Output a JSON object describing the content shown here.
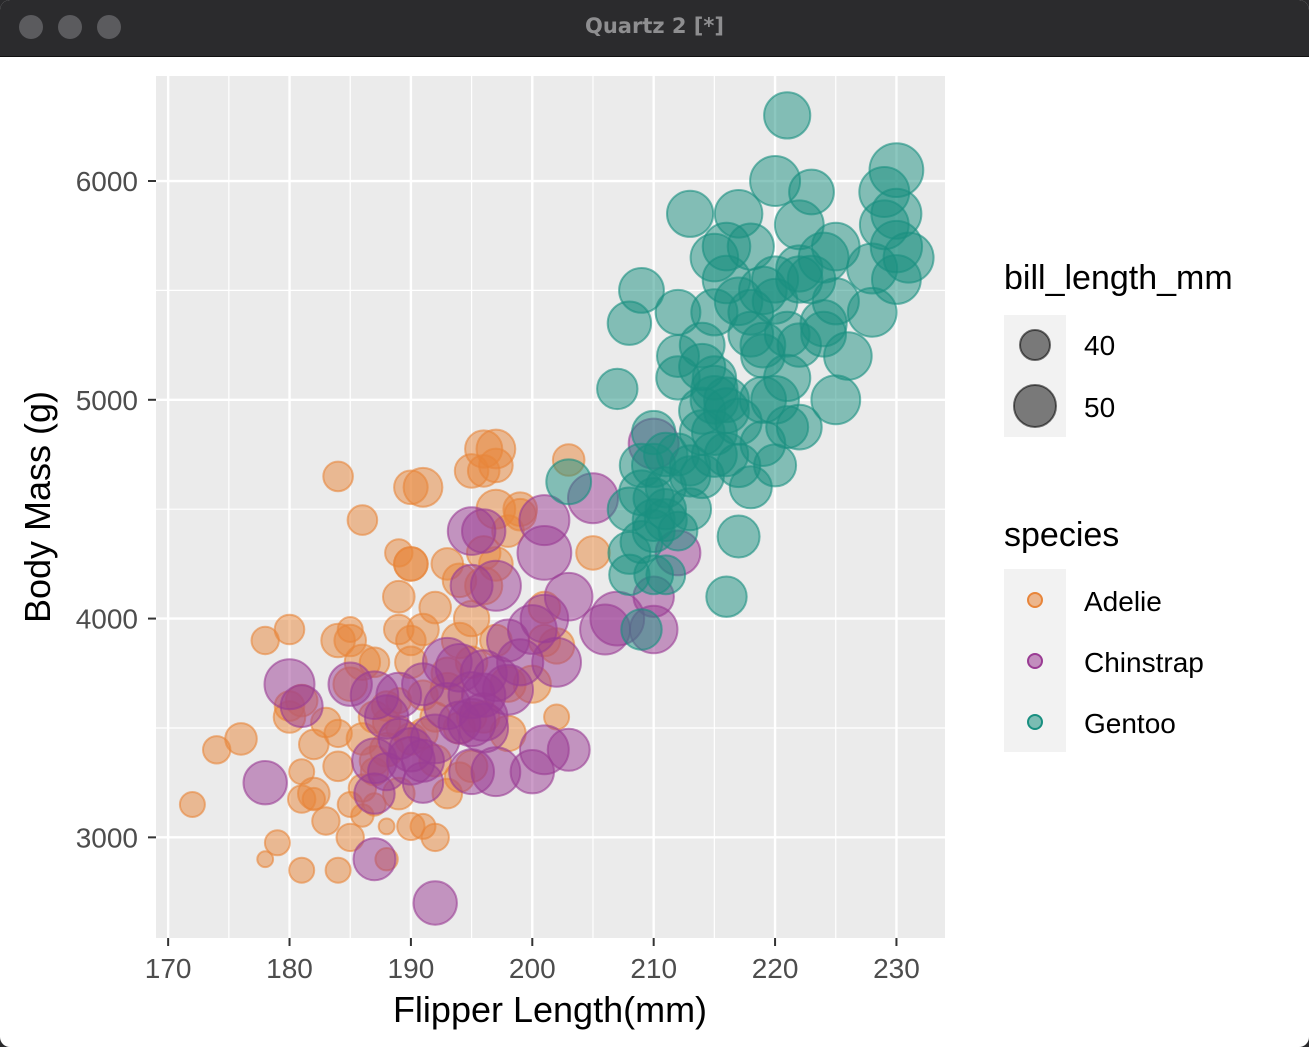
{
  "window": {
    "title": "Quartz 2 [*]"
  },
  "chart_data": {
    "type": "scatter",
    "xlabel": "Flipper Length(mm)",
    "ylabel": "Body Mass (g)",
    "xlim": [
      169,
      234
    ],
    "ylim": [
      2540,
      6480
    ],
    "xticks": [
      170,
      180,
      190,
      200,
      210,
      220,
      230
    ],
    "yticks": [
      3000,
      4000,
      5000,
      6000
    ],
    "grid": true,
    "legend_position": "right",
    "size_legend": {
      "title": "bill_length_mm",
      "entries": [
        40,
        50
      ]
    },
    "color_legend": {
      "title": "species",
      "entries": [
        {
          "name": "Adelie",
          "color": "#E8853A"
        },
        {
          "name": "Chinstrap",
          "color": "#9A3C94"
        },
        {
          "name": "Gentoo",
          "color": "#198F80"
        }
      ]
    },
    "series": [
      {
        "name": "Adelie",
        "color": "#E8853A",
        "points": [
          [
            172,
            3150,
            37
          ],
          [
            174,
            3400,
            38
          ],
          [
            176,
            3450,
            40
          ],
          [
            178,
            3900,
            38
          ],
          [
            178,
            2900,
            34
          ],
          [
            179,
            2975,
            37
          ],
          [
            180,
            3950,
            39
          ],
          [
            180,
            3550,
            40
          ],
          [
            180,
            3600,
            39
          ],
          [
            181,
            2850,
            37
          ],
          [
            181,
            3175,
            38
          ],
          [
            181,
            3300,
            37
          ],
          [
            181,
            3625,
            40
          ],
          [
            182,
            3200,
            40
          ],
          [
            182,
            3425,
            39
          ],
          [
            182,
            3175,
            36
          ],
          [
            183,
            3075,
            38
          ],
          [
            184,
            3900,
            41
          ],
          [
            184,
            2850,
            37
          ],
          [
            184,
            3325,
            39
          ],
          [
            184,
            3475,
            38
          ],
          [
            184,
            4650,
            39
          ],
          [
            185,
            3900,
            40
          ],
          [
            185,
            3950,
            37
          ],
          [
            185,
            3000,
            38
          ],
          [
            185,
            3150,
            37
          ],
          [
            185,
            3700,
            41
          ],
          [
            186,
            3800,
            42
          ],
          [
            186,
            3450,
            40
          ],
          [
            186,
            4450,
            39
          ],
          [
            186,
            3100,
            36
          ],
          [
            187,
            3800,
            39
          ],
          [
            187,
            3550,
            40
          ],
          [
            187,
            3150,
            36
          ],
          [
            187,
            3300,
            38
          ],
          [
            188,
            3050,
            34
          ],
          [
            188,
            3525,
            38
          ],
          [
            188,
            3600,
            39
          ],
          [
            188,
            2900,
            36
          ],
          [
            189,
            3200,
            40
          ],
          [
            189,
            3950,
            39
          ],
          [
            189,
            4100,
            40
          ],
          [
            189,
            3625,
            37
          ],
          [
            189,
            4300,
            38
          ],
          [
            190,
            4250,
            41
          ],
          [
            190,
            3900,
            39
          ],
          [
            190,
            3450,
            40
          ],
          [
            190,
            4600,
            41
          ],
          [
            190,
            3050,
            38
          ],
          [
            190,
            3800,
            40
          ],
          [
            190,
            4250,
            41
          ],
          [
            191,
            3650,
            39
          ],
          [
            191,
            3050,
            37
          ],
          [
            191,
            3950,
            40
          ],
          [
            191,
            4600,
            44
          ],
          [
            192,
            3000,
            38
          ],
          [
            192,
            4050,
            40
          ],
          [
            192,
            3550,
            39
          ],
          [
            193,
            3750,
            40
          ],
          [
            193,
            3200,
            39
          ],
          [
            193,
            4250,
            40
          ],
          [
            194,
            3275,
            39
          ],
          [
            194,
            3900,
            42
          ],
          [
            194,
            4175,
            41
          ],
          [
            195,
            4000,
            42
          ],
          [
            195,
            3800,
            40
          ],
          [
            195,
            3550,
            39
          ],
          [
            195,
            4675,
            41
          ],
          [
            195,
            3325,
            40
          ],
          [
            196,
            4300,
            41
          ],
          [
            196,
            3550,
            40
          ],
          [
            196,
            4675,
            40
          ],
          [
            196,
            4150,
            43
          ],
          [
            197,
            3900,
            40
          ],
          [
            197,
            4700,
            41
          ],
          [
            197,
            4500,
            44
          ],
          [
            197,
            4250,
            41
          ],
          [
            198,
            4400,
            40
          ],
          [
            198,
            3475,
            42
          ],
          [
            199,
            4500,
            41
          ],
          [
            199,
            4475,
            40
          ],
          [
            200,
            3700,
            43
          ],
          [
            201,
            4050,
            40
          ],
          [
            201,
            3900,
            40
          ],
          [
            202,
            3875,
            42
          ],
          [
            202,
            3550,
            37
          ],
          [
            203,
            4725,
            40
          ],
          [
            205,
            4300,
            41
          ],
          [
            196,
            4775,
            43
          ],
          [
            197,
            4775,
            44
          ],
          [
            183,
            3525,
            39
          ],
          [
            186,
            3225,
            38
          ],
          [
            187,
            3350,
            39
          ],
          [
            188,
            3400,
            41
          ],
          [
            189,
            3500,
            37
          ],
          [
            191,
            3475,
            39
          ],
          [
            192,
            3350,
            40
          ],
          [
            193,
            3675,
            41
          ],
          [
            194,
            3500,
            40
          ],
          [
            198,
            3700,
            42
          ]
        ]
      },
      {
        "name": "Chinstrap",
        "color": "#9A3C94",
        "points": [
          [
            178,
            3250,
            47
          ],
          [
            180,
            3700,
            52
          ],
          [
            181,
            3600,
            46
          ],
          [
            185,
            3700,
            47
          ],
          [
            187,
            2900,
            46
          ],
          [
            187,
            3350,
            48
          ],
          [
            187,
            3200,
            45
          ],
          [
            187,
            3650,
            50
          ],
          [
            188,
            3550,
            47
          ],
          [
            188,
            3300,
            43
          ],
          [
            189,
            3650,
            48
          ],
          [
            189,
            3450,
            45
          ],
          [
            190,
            3400,
            47
          ],
          [
            190,
            3350,
            50
          ],
          [
            191,
            3250,
            45
          ],
          [
            191,
            3350,
            46
          ],
          [
            191,
            3700,
            46
          ],
          [
            192,
            2700,
            47
          ],
          [
            192,
            3450,
            51
          ],
          [
            193,
            3800,
            51
          ],
          [
            193,
            3600,
            49
          ],
          [
            194,
            3775,
            50
          ],
          [
            194,
            3525,
            46
          ],
          [
            195,
            3300,
            48
          ],
          [
            195,
            3650,
            49
          ],
          [
            195,
            4400,
            50
          ],
          [
            195,
            3525,
            50
          ],
          [
            195,
            4150,
            46
          ],
          [
            196,
            3500,
            51
          ],
          [
            196,
            3750,
            49
          ],
          [
            196,
            3650,
            47
          ],
          [
            196,
            3550,
            50
          ],
          [
            197,
            3300,
            51
          ],
          [
            197,
            3725,
            48
          ],
          [
            197,
            4150,
            52
          ],
          [
            198,
            3675,
            52
          ],
          [
            198,
            3900,
            46
          ],
          [
            199,
            3800,
            49
          ],
          [
            200,
            3300,
            47
          ],
          [
            200,
            3950,
            51
          ],
          [
            201,
            3400,
            51
          ],
          [
            201,
            4450,
            52
          ],
          [
            201,
            4300,
            55
          ],
          [
            201,
            4000,
            50
          ],
          [
            202,
            3800,
            51
          ],
          [
            203,
            3400,
            46
          ],
          [
            203,
            4100,
            50
          ],
          [
            205,
            4550,
            52
          ],
          [
            206,
            3950,
            52
          ],
          [
            207,
            4000,
            55
          ],
          [
            210,
            4100,
            45
          ],
          [
            210,
            3950,
            50
          ],
          [
            210,
            4800,
            52
          ],
          [
            212,
            4300,
            48
          ],
          [
            196,
            4400,
            47
          ]
        ]
      },
      {
        "name": "Gentoo",
        "color": "#198F80",
        "points": [
          [
            203,
            4625,
            48
          ],
          [
            207,
            5050,
            45
          ],
          [
            208,
            5350,
            47
          ],
          [
            208,
            4300,
            46
          ],
          [
            208,
            4200,
            45
          ],
          [
            208,
            4500,
            47
          ],
          [
            209,
            5500,
            48
          ],
          [
            209,
            4700,
            47
          ],
          [
            209,
            3950,
            45
          ],
          [
            209,
            4350,
            46
          ],
          [
            209,
            4575,
            48
          ],
          [
            210,
            4850,
            47
          ],
          [
            210,
            4550,
            45
          ],
          [
            210,
            4450,
            46
          ],
          [
            210,
            4200,
            44
          ],
          [
            210,
            4700,
            47
          ],
          [
            210,
            4400,
            46
          ],
          [
            211,
            4750,
            47
          ],
          [
            211,
            4600,
            45
          ],
          [
            211,
            4450,
            46
          ],
          [
            211,
            4500,
            45
          ],
          [
            211,
            4200,
            44
          ],
          [
            212,
            5400,
            48
          ],
          [
            212,
            5200,
            46
          ],
          [
            212,
            4400,
            44
          ],
          [
            212,
            4750,
            46
          ],
          [
            212,
            5100,
            47
          ],
          [
            213,
            4700,
            45
          ],
          [
            213,
            4500,
            46
          ],
          [
            213,
            4650,
            45
          ],
          [
            213,
            5850,
            49
          ],
          [
            214,
            5250,
            48
          ],
          [
            214,
            4850,
            48
          ],
          [
            214,
            4950,
            49
          ],
          [
            214,
            4650,
            47
          ],
          [
            215,
            5650,
            50
          ],
          [
            215,
            5050,
            49
          ],
          [
            215,
            5000,
            50
          ],
          [
            215,
            5400,
            49
          ],
          [
            215,
            4850,
            48
          ],
          [
            215,
            5100,
            47
          ],
          [
            215,
            4750,
            48
          ],
          [
            216,
            5000,
            48
          ],
          [
            216,
            4750,
            47
          ],
          [
            216,
            5550,
            50
          ],
          [
            216,
            4100,
            45
          ],
          [
            216,
            4950,
            48
          ],
          [
            217,
            5450,
            50
          ],
          [
            217,
            4900,
            49
          ],
          [
            217,
            4375,
            46
          ],
          [
            217,
            5850,
            50
          ],
          [
            217,
            4700,
            47
          ],
          [
            218,
            5700,
            49
          ],
          [
            218,
            5300,
            48
          ],
          [
            218,
            4600,
            46
          ],
          [
            219,
            5250,
            48
          ],
          [
            219,
            5500,
            50
          ],
          [
            219,
            5000,
            49
          ],
          [
            219,
            5200,
            47
          ],
          [
            219,
            4800,
            48
          ],
          [
            220,
            5550,
            49
          ],
          [
            220,
            5000,
            50
          ],
          [
            220,
            4700,
            46
          ],
          [
            220,
            6000,
            52
          ],
          [
            220,
            5450,
            48
          ],
          [
            221,
            5100,
            49
          ],
          [
            221,
            5300,
            48
          ],
          [
            221,
            6300,
            49
          ],
          [
            221,
            4875,
            46
          ],
          [
            222,
            5600,
            49
          ],
          [
            222,
            5800,
            51
          ],
          [
            222,
            5250,
            47
          ],
          [
            222,
            4875,
            48
          ],
          [
            223,
            5550,
            50
          ],
          [
            223,
            5950,
            48
          ],
          [
            224,
            5650,
            52
          ],
          [
            224,
            5350,
            49
          ],
          [
            224,
            5300,
            48
          ],
          [
            225,
            5700,
            50
          ],
          [
            225,
            5000,
            51
          ],
          [
            226,
            5200,
            50
          ],
          [
            228,
            5600,
            52
          ],
          [
            228,
            5400,
            51
          ],
          [
            229,
            5800,
            51
          ],
          [
            229,
            5950,
            52
          ],
          [
            230,
            5850,
            52
          ],
          [
            230,
            5550,
            51
          ],
          [
            230,
            5700,
            53
          ],
          [
            230,
            6050,
            55
          ],
          [
            231,
            5650,
            52
          ],
          [
            216,
            5700,
            50
          ],
          [
            225,
            5450,
            49
          ],
          [
            218,
            5400,
            48
          ],
          [
            214,
            5150,
            49
          ],
          [
            222,
            5550,
            49
          ]
        ]
      }
    ]
  }
}
